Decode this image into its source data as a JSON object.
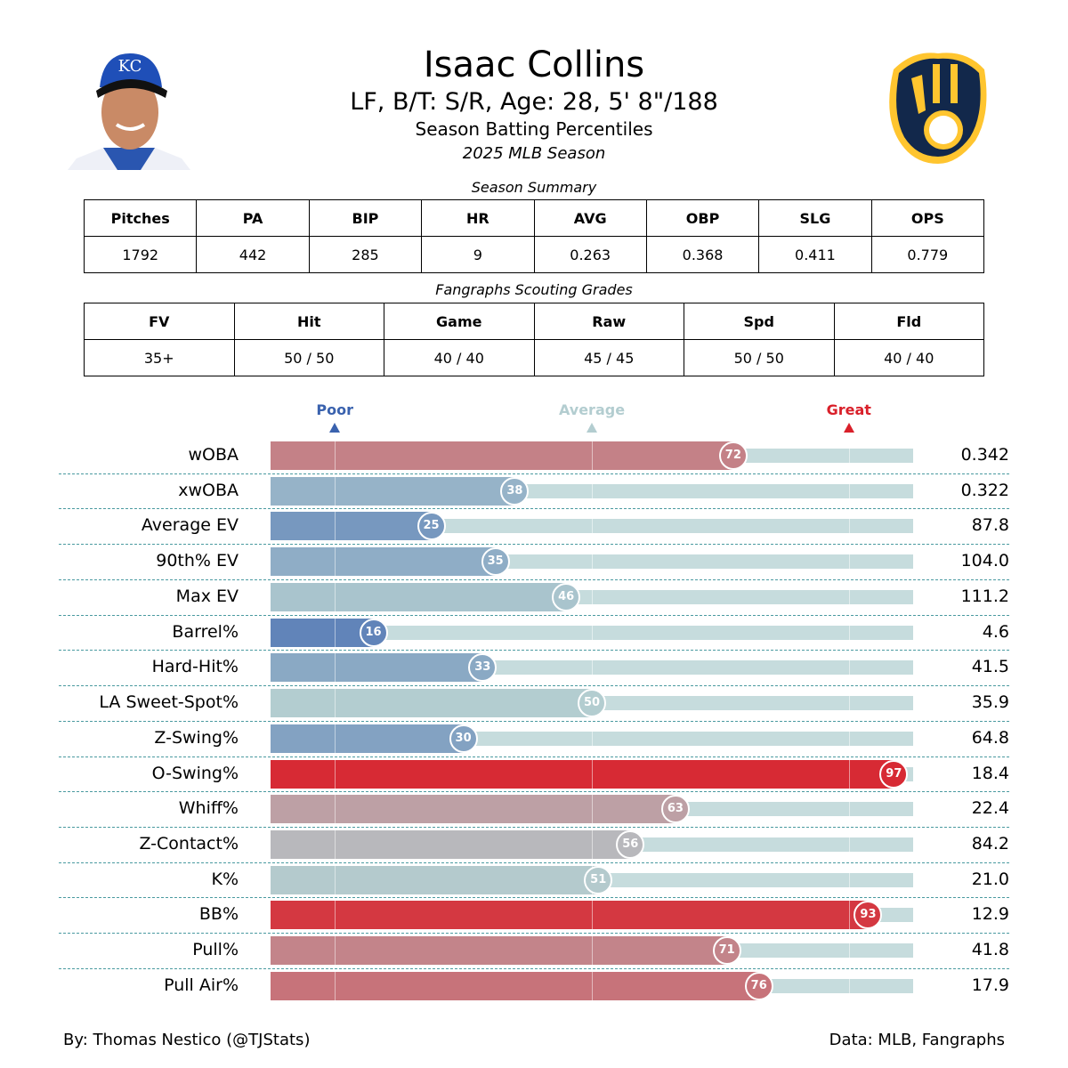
{
  "header": {
    "name": "Isaac Collins",
    "bio": "LF, B/T: S/R, Age: 28, 5' 8\"/188",
    "subtitle": "Season Batting Percentiles",
    "season": "2025 MLB Season"
  },
  "summary": {
    "caption": "Season Summary",
    "headers": [
      "Pitches",
      "PA",
      "BIP",
      "HR",
      "AVG",
      "OBP",
      "SLG",
      "OPS"
    ],
    "values": [
      "1792",
      "442",
      "285",
      "9",
      "0.263",
      "0.368",
      "0.411",
      "0.779"
    ]
  },
  "grades": {
    "caption": "Fangraphs Scouting Grades",
    "headers": [
      "FV",
      "Hit",
      "Game",
      "Raw",
      "Spd",
      "Fld"
    ],
    "values": [
      "35+",
      "50 / 50",
      "40 / 40",
      "45 / 45",
      "50 / 50",
      "40 / 40"
    ]
  },
  "chart_data": {
    "type": "bar",
    "orientation": "horizontal",
    "xlim": [
      0,
      100
    ],
    "markers": [
      {
        "label": "Poor",
        "value": 10,
        "color": "#3a62ae"
      },
      {
        "label": "Average",
        "value": 50,
        "color": "#b3cdd0"
      },
      {
        "label": "Great",
        "value": 90,
        "color": "#d9202a"
      }
    ],
    "categories": [
      "wOBA",
      "xwOBA",
      "Average EV",
      "90th% EV",
      "Max EV",
      "Barrel%",
      "Hard-Hit%",
      "LA Sweet-Spot%",
      "Z-Swing%",
      "O-Swing%",
      "Whiff%",
      "Z-Contact%",
      "K%",
      "BB%",
      "Pull%",
      "Pull Air%"
    ],
    "percentiles": [
      72,
      38,
      25,
      35,
      46,
      16,
      33,
      50,
      30,
      97,
      63,
      56,
      51,
      93,
      71,
      76
    ],
    "stat_values": [
      "0.342",
      "0.322",
      "87.8",
      "104.0",
      "111.2",
      "4.6",
      "41.5",
      "35.9",
      "64.8",
      "18.4",
      "22.4",
      "84.2",
      "21.0",
      "12.9",
      "41.8",
      "17.9"
    ]
  },
  "footer": {
    "left": "By: Thomas Nestico (@TJStats)",
    "right": "Data: MLB, Fangraphs"
  },
  "colors": {
    "poor": "#3a62ae",
    "average": "#b3cdd0",
    "great": "#d9202a",
    "track": "#c6dcdd",
    "team_navy": "#12284b",
    "team_gold": "#ffc52f"
  }
}
